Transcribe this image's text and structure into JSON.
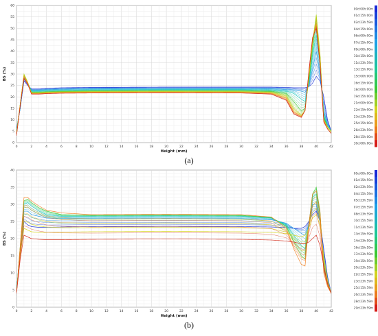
{
  "chart_data": [
    {
      "type": "line",
      "panel_label": "(a)",
      "xlabel": "Height (mm)",
      "ylabel": "BS (%)",
      "xlim": [
        0,
        42
      ],
      "ylim": [
        0,
        60
      ],
      "x_ticks": [
        0,
        2,
        4,
        6,
        8,
        10,
        12,
        14,
        16,
        18,
        20,
        22,
        24,
        26,
        28,
        30,
        32,
        34,
        36,
        38,
        40,
        42
      ],
      "y_ticks": [
        0,
        5,
        10,
        15,
        20,
        25,
        30,
        35,
        40,
        45,
        50,
        55,
        60
      ],
      "grid": true,
      "legend_position": "right",
      "legend_colorscale": "blue (top) to red (bottom)",
      "legend": [
        "00d:00h:00m",
        "01d:15h:00m",
        "02d:23h:59m",
        "04d:15h:00m",
        "06d:00h:00m",
        "07d:15h:00m",
        "09d:00h:00m",
        "10d:15h:00m",
        "11d:23h:59m",
        "13d:15h:00m",
        "15d:00h:00m",
        "16d:15h:00m",
        "18d:00h:00m",
        "19d:15h:00m",
        "21d:00h:00m",
        "22d:15h:00m",
        "23d:23h:59m",
        "25d:15h:00m",
        "26d:23h:59m",
        "28d:15h:00m",
        "30d:00h:00m"
      ],
      "x": [
        0,
        0.5,
        1,
        1.5,
        2,
        3,
        4,
        6,
        10,
        20,
        30,
        34,
        36,
        37,
        38,
        38.5,
        39,
        39.5,
        40,
        40.5,
        41,
        41.5,
        42
      ],
      "series": [
        {
          "color": "#1a2fd6",
          "values": [
            6,
            15,
            27,
            25,
            23.5,
            23.5,
            23.8,
            24,
            24.2,
            24.3,
            24.3,
            24.3,
            24.2,
            24,
            24,
            24,
            24.5,
            26,
            29,
            27,
            20,
            10,
            5
          ]
        },
        {
          "color": "#1f9be0",
          "values": [
            5,
            15,
            28,
            26,
            23,
            23,
            23.2,
            23.4,
            23.6,
            23.7,
            23.7,
            23.6,
            23.3,
            23,
            22.5,
            22,
            25,
            32,
            40,
            30,
            14,
            8,
            5
          ]
        },
        {
          "color": "#19c9c0",
          "values": [
            5,
            16,
            29,
            26,
            22.5,
            22.5,
            22.7,
            22.9,
            23.1,
            23.2,
            23.2,
            23,
            22.5,
            21.5,
            19,
            18,
            26,
            38,
            47,
            35,
            12,
            7,
            5
          ]
        },
        {
          "color": "#3dc936",
          "values": [
            4,
            17,
            29.5,
            26,
            22,
            22,
            22.2,
            22.4,
            22.6,
            22.7,
            22.7,
            22.4,
            21.5,
            18,
            14,
            15,
            27,
            42,
            54,
            38,
            11,
            7,
            5
          ]
        },
        {
          "color": "#b5d61f",
          "values": [
            4,
            17,
            30,
            26.5,
            21.8,
            21.8,
            22,
            22.2,
            22.3,
            22.4,
            22.3,
            22,
            20.5,
            15,
            12,
            14,
            28,
            44,
            56,
            39,
            10,
            7,
            5
          ]
        },
        {
          "color": "#f0a020",
          "values": [
            3,
            17,
            29,
            26,
            21.5,
            21.5,
            21.7,
            21.9,
            22,
            22.1,
            22,
            21.6,
            19.5,
            13.5,
            11.5,
            14,
            30,
            45,
            52,
            36,
            10,
            6,
            4
          ]
        },
        {
          "color": "#d42a1a",
          "values": [
            3,
            16,
            28,
            25.5,
            21.2,
            21.2,
            21.4,
            21.6,
            21.7,
            21.8,
            21.7,
            21.2,
            18.5,
            12.5,
            11,
            14,
            31,
            46,
            50,
            34,
            9,
            6,
            4
          ]
        }
      ]
    },
    {
      "type": "line",
      "panel_label": "(b)",
      "xlabel": "Height (mm)",
      "ylabel": "BS (%)",
      "xlim": [
        0,
        42
      ],
      "ylim": [
        0,
        40
      ],
      "x_ticks": [
        0,
        2,
        4,
        6,
        8,
        10,
        12,
        14,
        16,
        18,
        20,
        22,
        24,
        26,
        28,
        30,
        32,
        34,
        36,
        38,
        40,
        42
      ],
      "y_ticks": [
        0,
        5,
        10,
        15,
        20,
        25,
        30,
        35,
        40
      ],
      "grid": true,
      "legend_position": "right",
      "legend_colorscale": "blue (top) to red (bottom)",
      "legend": [
        "00d:00h:00m",
        "01d:15h:59m",
        "02d:23h:59m",
        "04d:15h:59m",
        "05d:23h:59m",
        "07d:15h:59m",
        "08d:23h:59m",
        "10d:15h:59m",
        "11d:23h:59m",
        "13d:15h:59m",
        "14d:23h:59m",
        "16d:15h:59m",
        "17d:23h:59m",
        "19d:15h:59m",
        "20d:23h:59m",
        "22d:15h:59m",
        "23d:23h:59m",
        "25d:15h:59m",
        "26d:23h:59m",
        "28d:23h:59m",
        "29d:23h:59m"
      ],
      "x": [
        0,
        0.5,
        1,
        1.5,
        2,
        3,
        4,
        6,
        10,
        20,
        30,
        34,
        36,
        37,
        38,
        38.5,
        39,
        39.5,
        40,
        40.5,
        41,
        41.5,
        42
      ],
      "series": [
        {
          "color": "#1a2fd6",
          "values": [
            5,
            15,
            25,
            24,
            23.5,
            23.3,
            23.3,
            23.4,
            23.5,
            23.6,
            23.5,
            23.4,
            23.2,
            23,
            23,
            23.5,
            25,
            27,
            28,
            25,
            17,
            9,
            4
          ]
        },
        {
          "color": "#1f9be0",
          "values": [
            5,
            16,
            28,
            28,
            27,
            26.5,
            26,
            25.8,
            25.8,
            25.9,
            25.8,
            25.5,
            24.5,
            23,
            21.5,
            21,
            24,
            30,
            30,
            25,
            14,
            8,
            4
          ]
        },
        {
          "color": "#19c9c0",
          "values": [
            5,
            17,
            30,
            30.5,
            29.5,
            28,
            27,
            26.5,
            26.5,
            26.6,
            26.5,
            26,
            24,
            21,
            18,
            17,
            24,
            32,
            33,
            27,
            12,
            7,
            4
          ]
        },
        {
          "color": "#3dc936",
          "values": [
            4,
            18,
            31,
            31.5,
            30.5,
            29,
            28,
            27,
            26.8,
            26.9,
            26.8,
            26.2,
            23.5,
            19,
            15,
            14,
            24,
            33,
            35,
            28,
            11,
            7,
            4
          ]
        },
        {
          "color": "#d6d61f",
          "values": [
            4,
            15,
            23,
            22.5,
            22,
            21.8,
            21.8,
            21.9,
            22,
            22.1,
            22,
            21.8,
            21.5,
            21,
            20.5,
            21,
            23,
            26,
            27,
            24,
            15,
            8,
            4
          ]
        },
        {
          "color": "#f08020",
          "values": [
            4,
            18,
            32,
            32,
            31,
            29.5,
            28.3,
            27.5,
            27,
            27.1,
            27,
            26.3,
            23,
            17,
            12.5,
            12,
            24,
            33,
            34,
            28,
            10,
            6,
            4
          ]
        },
        {
          "color": "#d42a1a",
          "values": [
            4,
            14,
            21,
            20.5,
            20,
            19.8,
            19.7,
            19.7,
            19.8,
            19.9,
            19.8,
            19.6,
            19.3,
            19,
            18.5,
            18.5,
            19,
            20,
            21,
            18,
            12,
            7,
            4
          ]
        }
      ]
    }
  ]
}
